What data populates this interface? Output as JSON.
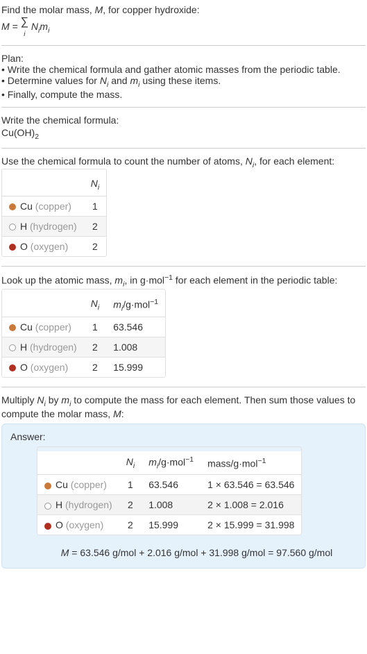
{
  "intro": {
    "line1": "Find the molar mass, ",
    "m": "M",
    "line1b": ", for copper hydroxide:",
    "eq_lhs": "M = ",
    "sigma": "∑",
    "sigma_sub": "i",
    "eq_rhs_a": "N",
    "eq_rhs_b": "m",
    "eq_sub": "i"
  },
  "plan": {
    "header": "Plan:",
    "b1": "• Write the chemical formula and gather atomic masses from the periodic table.",
    "b2a": "• Determine values for ",
    "b2_n": "N",
    "b2_i": "i",
    "b2b": " and ",
    "b2_m": "m",
    "b2c": " using these items.",
    "b3": "• Finally, compute the mass."
  },
  "chem": {
    "header": "Write the chemical formula:",
    "formula_a": "Cu(OH)",
    "formula_sub": "2"
  },
  "count": {
    "header_a": "Use the chemical formula to count the number of atoms, ",
    "n": "N",
    "i": "i",
    "header_b": ", for each element:",
    "col_n": "N",
    "col_i": "i"
  },
  "lookup": {
    "header_a": "Look up the atomic mass, ",
    "m": "m",
    "i": "i",
    "header_b": ", in g·mol",
    "exp": "−1",
    "header_c": " for each element in the periodic table:",
    "col_m": "m",
    "col_unit": "/g·mol"
  },
  "multiply": {
    "line_a": "Multiply ",
    "n": "N",
    "i": "i",
    "line_b": " by ",
    "m": "m",
    "line_c": " to compute the mass for each element. Then sum those values to compute the molar mass, ",
    "mcap": "M",
    "line_d": ":"
  },
  "answer": {
    "label": "Answer:",
    "mass_col": "mass/g·mol",
    "final_a": "M",
    "final_b": " = 63.546 g/mol + 2.016 g/mol + 31.998 g/mol = 97.560 g/mol"
  },
  "elements": [
    {
      "sym": "Cu",
      "name": "(copper)",
      "color": "#c97a3a",
      "ring": false,
      "n": "1",
      "m": "63.546",
      "mass_expr": "1 × 63.546 = 63.546"
    },
    {
      "sym": "H",
      "name": "(hydrogen)",
      "color": "#ffffff",
      "ring": true,
      "n": "2",
      "m": "1.008",
      "mass_expr": "2 × 1.008 = 2.016"
    },
    {
      "sym": "O",
      "name": "(oxygen)",
      "color": "#b03020",
      "ring": false,
      "n": "2",
      "m": "15.999",
      "mass_expr": "2 × 15.999 = 31.998"
    }
  ],
  "style": {
    "dot_border": "#999"
  }
}
